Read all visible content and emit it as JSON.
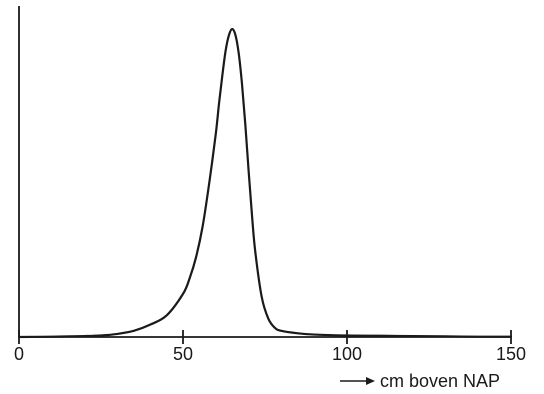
{
  "chart_data": {
    "type": "line",
    "title": "",
    "xlabel": "cm boven NAP",
    "ylabel": "",
    "xlim": [
      0,
      150
    ],
    "x_ticks": [
      0,
      50,
      100,
      150
    ],
    "x_tick_labels": [
      "0",
      "50",
      "100",
      "150"
    ],
    "y_ticks_shown": false,
    "grid": false,
    "xlabel_arrow": true,
    "line_color": "#1a1a1a",
    "series": [
      {
        "x": [
          0,
          10,
          20,
          25,
          30,
          35,
          40,
          45,
          50,
          52,
          54,
          56,
          58,
          60,
          61,
          62,
          63,
          64,
          65,
          66,
          67,
          68,
          69,
          70,
          71,
          72,
          74,
          76,
          78,
          80,
          85,
          90,
          100,
          110,
          120,
          130,
          140,
          150
        ],
        "values": [
          0.0,
          0.001,
          0.003,
          0.005,
          0.01,
          0.02,
          0.04,
          0.07,
          0.14,
          0.19,
          0.26,
          0.36,
          0.5,
          0.66,
          0.76,
          0.85,
          0.93,
          0.98,
          1.0,
          0.98,
          0.92,
          0.82,
          0.69,
          0.54,
          0.4,
          0.28,
          0.13,
          0.06,
          0.03,
          0.02,
          0.012,
          0.008,
          0.005,
          0.004,
          0.003,
          0.002,
          0.001,
          0.001
        ]
      }
    ]
  }
}
